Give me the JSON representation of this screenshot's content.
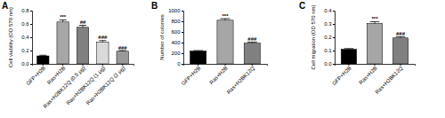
{
  "chart_data": [
    {
      "type": "bar",
      "title": "A",
      "y_label": "Cell viability (OD 570 nm)",
      "categories": [
        "GFP+H2B",
        "Ras+H2B",
        "Ras+H2BK12Q (0.5 μg)",
        "Ras+H2BK12Q (1 μg)",
        "Ras+H2BK12Q (2 μg)"
      ],
      "values": [
        0.12,
        0.63,
        0.55,
        0.33,
        0.19
      ],
      "errors": [
        0.01,
        0.03,
        0.03,
        0.02,
        0.01
      ],
      "annotations": [
        null,
        "***",
        "##",
        "###",
        "###"
      ],
      "colors": [
        "#000000",
        "#a6a6a6",
        "#808080",
        "#d9d9d9",
        "#999999"
      ],
      "ylim": [
        0,
        0.8
      ],
      "yticks": [
        {
          "value": 0,
          "label": "0.0"
        },
        0.2,
        0.4,
        0.6,
        0.8
      ]
    },
    {
      "type": "bar",
      "title": "B",
      "y_label": "Number of colonies",
      "categories": [
        "GFP+H2B",
        "Ras+H2B",
        "Ras+H2BK12Q"
      ],
      "values": [
        240,
        820,
        390
      ],
      "errors": [
        10,
        30,
        20
      ],
      "annotations": [
        null,
        "***",
        "###"
      ],
      "colors": [
        "#000000",
        "#a6a6a6",
        "#808080"
      ],
      "ylim": [
        0,
        1000
      ],
      "yticks": [
        0,
        200,
        400,
        600,
        800,
        1000
      ]
    },
    {
      "type": "bar",
      "title": "C",
      "y_label": "Cell migration (OD 570 nm)",
      "categories": [
        "GFP+H2B",
        "Ras+H2B",
        "Ras+H2BK12Q"
      ],
      "values": [
        0.11,
        0.305,
        0.195
      ],
      "errors": [
        0.005,
        0.012,
        0.01
      ],
      "annotations": [
        null,
        "***",
        "###"
      ],
      "colors": [
        "#000000",
        "#a6a6a6",
        "#808080"
      ],
      "ylim": [
        0,
        0.4
      ],
      "yticks": [
        {
          "value": 0,
          "label": "0.0"
        },
        0.1,
        0.2,
        0.3,
        0.4
      ]
    }
  ]
}
